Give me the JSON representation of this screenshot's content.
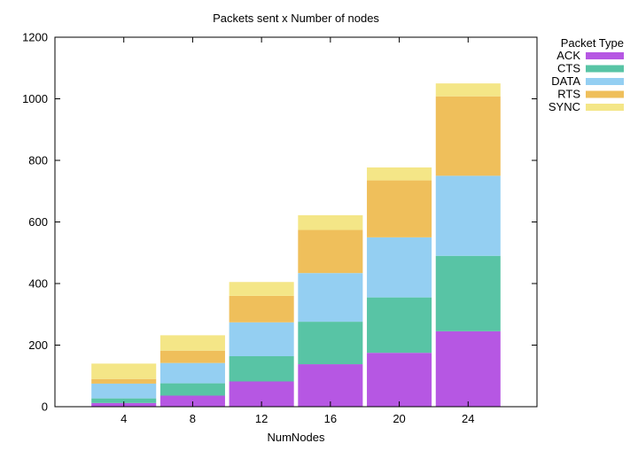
{
  "chart_data": {
    "type": "bar",
    "stacked": true,
    "title": "Packets sent x Number of nodes",
    "xlabel": "NumNodes",
    "ylabel": "",
    "ylim": [
      0,
      1200
    ],
    "yticks": [
      0,
      200,
      400,
      600,
      800,
      1000,
      1200
    ],
    "categories": [
      "4",
      "8",
      "12",
      "16",
      "20",
      "24"
    ],
    "legend_title": "Packet Type",
    "legend_position": "outside-top-right",
    "grid": false,
    "series": [
      {
        "name": "ACK",
        "color": "#b657e3",
        "values": [
          12,
          36,
          82,
          138,
          175,
          245
        ]
      },
      {
        "name": "CTS",
        "color": "#58c4a5",
        "values": [
          15,
          40,
          82,
          138,
          180,
          245
        ]
      },
      {
        "name": "DATA",
        "color": "#94cff2",
        "values": [
          48,
          66,
          110,
          158,
          195,
          260
        ]
      },
      {
        "name": "RTS",
        "color": "#efbf5b",
        "values": [
          15,
          40,
          86,
          140,
          185,
          258
        ]
      },
      {
        "name": "SYNC",
        "color": "#f4e687",
        "values": [
          50,
          50,
          45,
          48,
          42,
          42
        ]
      }
    ]
  }
}
